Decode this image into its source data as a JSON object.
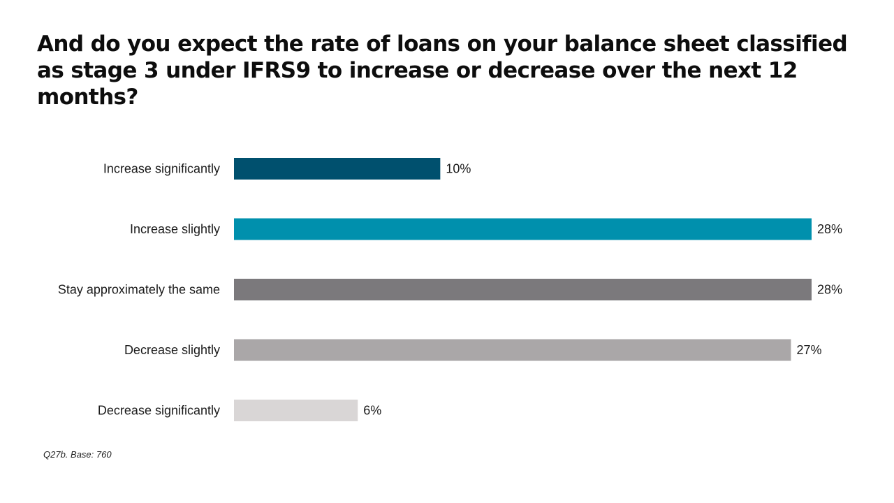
{
  "chart_data": {
    "type": "bar",
    "orientation": "horizontal",
    "title": "And do you expect the rate of loans on your balance sheet classified as stage 3 under IFRS9 to increase or decrease over the next 12 months?",
    "categories": [
      "Increase significantly",
      "Increase slightly",
      "Stay approximately the same",
      "Decrease slightly",
      "Decrease significantly"
    ],
    "values": [
      10,
      28,
      28,
      27,
      6
    ],
    "value_labels": [
      "10%",
      "28%",
      "28%",
      "27%",
      "6%"
    ],
    "colors": [
      "#00506e",
      "#0090ad",
      "#7b797c",
      "#aaa7a8",
      "#d9d6d6"
    ],
    "unit": "%",
    "xlim": [
      0,
      28
    ],
    "grid": false,
    "legend": "none",
    "xlabel": "",
    "ylabel": ""
  },
  "footnote": "Q27b. Base: 760"
}
